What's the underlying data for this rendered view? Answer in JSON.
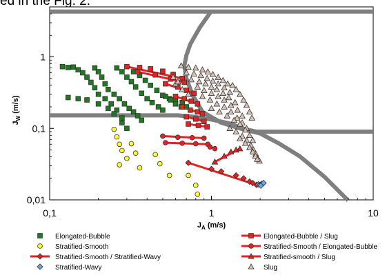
{
  "caption": "ed in the Fig. 2.",
  "chart_data": {
    "type": "scatter",
    "x_scale": "log",
    "y_scale": "log",
    "xlim": [
      0.1,
      10
    ],
    "ylim": [
      0.01,
      5
    ],
    "xticks": [
      {
        "value": 0.1,
        "label": "0,1"
      },
      {
        "value": 1,
        "label": "1"
      },
      {
        "value": 10,
        "label": "10"
      }
    ],
    "yticks": [
      {
        "value": 0.01,
        "label": "0,01"
      },
      {
        "value": 0.1,
        "label": "0,1"
      },
      {
        "value": 1,
        "label": "1"
      }
    ],
    "xlabel": {
      "main": "J",
      "sub": "A",
      "unit": " (m/s)"
    },
    "ylabel": {
      "main": "J",
      "sub": "W",
      "unit": " (m/s)"
    },
    "grid": false,
    "legend_position": "bottom",
    "colors": {
      "transition_line": "#7f7f7f",
      "green": "#1f7a1f",
      "yellow": "#ffff33",
      "red": "#e32222",
      "blue": "#6fa0dc",
      "tan": "#d9c2b4"
    },
    "transition_lines": [
      {
        "name": "",
        "points": [
          [
            0.1,
            4.3
          ],
          [
            10,
            4.3
          ]
        ]
      },
      {
        "name": "",
        "points": [
          [
            0.1,
            0.152
          ],
          [
            0.62,
            0.152
          ],
          [
            0.78,
            0.145
          ],
          [
            1.0,
            0.133
          ],
          [
            1.3,
            0.117
          ],
          [
            1.6,
            0.098
          ],
          [
            1.9,
            0.09
          ],
          [
            10,
            0.09
          ]
        ]
      },
      {
        "name": "",
        "points": [
          [
            1.0,
            4.4
          ],
          [
            0.85,
            2.6
          ],
          [
            0.74,
            1.5
          ],
          [
            0.7,
            1.05
          ],
          [
            0.68,
            0.75
          ],
          [
            0.7,
            0.5
          ],
          [
            0.76,
            0.3
          ],
          [
            0.88,
            0.17
          ],
          [
            1.15,
            0.12
          ],
          [
            1.5,
            0.1
          ],
          [
            2.0,
            0.085
          ],
          [
            2.6,
            0.062
          ],
          [
            3.5,
            0.041
          ],
          [
            5.0,
            0.021
          ],
          [
            7.0,
            0.0098
          ]
        ]
      }
    ],
    "series": [
      {
        "name": "Elongated-Bubble",
        "marker": "square",
        "color": "#1f7a1f",
        "points": [
          [
            0.12,
            0.73
          ],
          [
            0.13,
            0.71
          ],
          [
            0.14,
            0.72
          ],
          [
            0.15,
            0.66
          ],
          [
            0.16,
            0.6
          ],
          [
            0.17,
            0.52
          ],
          [
            0.18,
            0.44
          ],
          [
            0.19,
            0.37
          ],
          [
            0.2,
            0.3
          ],
          [
            0.22,
            0.26
          ],
          [
            0.24,
            0.22
          ],
          [
            0.26,
            0.18
          ],
          [
            0.28,
            0.14
          ],
          [
            0.13,
            0.27
          ],
          [
            0.15,
            0.26
          ],
          [
            0.17,
            0.25
          ],
          [
            0.2,
            0.22
          ],
          [
            0.23,
            0.19
          ],
          [
            0.25,
            0.16
          ],
          [
            0.28,
            0.12
          ],
          [
            0.3,
            0.1
          ],
          [
            0.19,
            0.7
          ],
          [
            0.2,
            0.62
          ],
          [
            0.21,
            0.52
          ],
          [
            0.22,
            0.42
          ],
          [
            0.23,
            0.35
          ],
          [
            0.25,
            0.3
          ],
          [
            0.27,
            0.26
          ],
          [
            0.29,
            0.22
          ],
          [
            0.31,
            0.19
          ],
          [
            0.33,
            0.17
          ],
          [
            0.35,
            0.15
          ],
          [
            0.37,
            0.13
          ],
          [
            0.26,
            0.7
          ],
          [
            0.28,
            0.62
          ],
          [
            0.3,
            0.52
          ],
          [
            0.32,
            0.45
          ],
          [
            0.34,
            0.38
          ],
          [
            0.37,
            0.31
          ],
          [
            0.4,
            0.26
          ],
          [
            0.43,
            0.23
          ],
          [
            0.47,
            0.2
          ],
          [
            0.5,
            0.18
          ],
          [
            0.33,
            0.62
          ],
          [
            0.36,
            0.55
          ],
          [
            0.39,
            0.47
          ],
          [
            0.42,
            0.4
          ],
          [
            0.46,
            0.34
          ],
          [
            0.5,
            0.29
          ],
          [
            0.55,
            0.26
          ],
          [
            0.6,
            0.24
          ],
          [
            0.66,
            0.23
          ],
          [
            0.52,
            0.28
          ],
          [
            0.56,
            0.25
          ],
          [
            0.6,
            0.22
          ],
          [
            0.65,
            0.2
          ],
          [
            0.7,
            0.2
          ]
        ]
      },
      {
        "name": "Stratified-Smooth",
        "marker": "circle",
        "color": "#ffff33",
        "points": [
          [
            0.25,
            0.097
          ],
          [
            0.26,
            0.076
          ],
          [
            0.27,
            0.06
          ],
          [
            0.28,
            0.049
          ],
          [
            0.27,
            0.031
          ],
          [
            0.3,
            0.038
          ],
          [
            0.32,
            0.061
          ],
          [
            0.34,
            0.045
          ],
          [
            0.36,
            0.028
          ],
          [
            0.45,
            0.043
          ],
          [
            0.48,
            0.032
          ],
          [
            0.55,
            0.022
          ],
          [
            0.72,
            0.022
          ],
          [
            0.8,
            0.016
          ],
          [
            0.82,
            0.012
          ]
        ]
      },
      {
        "name": "Stratified-Smooth / Stratified-Wavy",
        "marker": "diamond",
        "color": "#e32222",
        "points": [
          [
            0.72,
            0.033
          ],
          [
            1.0,
            0.027
          ],
          [
            1.15,
            0.025
          ],
          [
            1.42,
            0.022
          ],
          [
            1.58,
            0.02
          ],
          [
            1.72,
            0.018
          ],
          [
            1.8,
            0.0172
          ],
          [
            1.9,
            0.0162
          ]
        ]
      },
      {
        "name": "Stratified-Wavy",
        "marker": "diamond",
        "color": "#6fa0dc",
        "points": [
          [
            1.95,
            0.0165
          ],
          [
            2.0,
            0.0163
          ],
          [
            2.05,
            0.0168
          ],
          [
            2.1,
            0.0172
          ],
          [
            2.02,
            0.0158
          ]
        ]
      },
      {
        "name": "Elongated-Bubble / Slug",
        "marker": "square",
        "color": "#e32222",
        "points": [
          [
            0.3,
            0.73
          ],
          [
            0.36,
            0.71
          ],
          [
            0.42,
            0.68
          ],
          [
            0.5,
            0.63
          ],
          [
            0.58,
            0.57
          ],
          [
            0.66,
            0.5
          ],
          [
            0.35,
            0.62
          ],
          [
            0.45,
            0.56
          ],
          [
            0.56,
            0.49
          ],
          [
            0.68,
            0.44
          ],
          [
            0.52,
            0.42
          ],
          [
            0.62,
            0.38
          ],
          [
            0.7,
            0.34
          ],
          [
            0.78,
            0.31
          ],
          [
            0.6,
            0.28
          ],
          [
            0.68,
            0.26
          ],
          [
            0.75,
            0.24
          ],
          [
            0.82,
            0.22
          ],
          [
            0.66,
            0.2
          ],
          [
            0.74,
            0.18
          ],
          [
            0.82,
            0.17
          ],
          [
            0.88,
            0.16
          ],
          [
            0.7,
            0.145
          ],
          [
            0.8,
            0.135
          ],
          [
            0.9,
            0.125
          ],
          [
            0.72,
            0.115
          ],
          [
            0.83,
            0.11
          ],
          [
            0.94,
            0.105
          ]
        ]
      },
      {
        "name": "Stratified-Smooth / Elongated-Bubble",
        "marker": "circle",
        "color": "#e32222",
        "points": [
          [
            0.5,
            0.078
          ],
          [
            0.62,
            0.075
          ],
          [
            0.76,
            0.074
          ],
          [
            0.9,
            0.073
          ],
          [
            0.52,
            0.063
          ],
          [
            0.66,
            0.062
          ],
          [
            0.8,
            0.061
          ],
          [
            0.95,
            0.06
          ],
          [
            0.98,
            0.055
          ],
          [
            1.05,
            0.052
          ]
        ]
      },
      {
        "name": "Stratified-smooth / Slug",
        "marker": "triangle",
        "color": "#e32222",
        "points": [
          [
            1.05,
            0.034
          ],
          [
            1.2,
            0.041
          ],
          [
            1.32,
            0.047
          ],
          [
            1.42,
            0.05
          ],
          [
            1.5,
            0.052
          ]
        ]
      },
      {
        "name": "Slug",
        "marker": "triangle",
        "color": "#d9c2b4",
        "points": [
          [
            0.65,
            0.75
          ],
          [
            0.72,
            0.72
          ],
          [
            0.8,
            0.7
          ],
          [
            0.88,
            0.66
          ],
          [
            0.95,
            0.62
          ],
          [
            1.02,
            0.57
          ],
          [
            1.1,
            0.52
          ],
          [
            1.18,
            0.47
          ],
          [
            1.26,
            0.42
          ],
          [
            0.7,
            0.6
          ],
          [
            0.78,
            0.58
          ],
          [
            0.86,
            0.55
          ],
          [
            0.94,
            0.5
          ],
          [
            1.02,
            0.46
          ],
          [
            1.1,
            0.42
          ],
          [
            1.2,
            0.37
          ],
          [
            1.3,
            0.32
          ],
          [
            0.75,
            0.48
          ],
          [
            0.84,
            0.45
          ],
          [
            0.92,
            0.42
          ],
          [
            1.0,
            0.38
          ],
          [
            1.08,
            0.35
          ],
          [
            1.18,
            0.31
          ],
          [
            1.28,
            0.27
          ],
          [
            1.4,
            0.23
          ],
          [
            0.82,
            0.38
          ],
          [
            0.9,
            0.34
          ],
          [
            1.0,
            0.31
          ],
          [
            1.1,
            0.28
          ],
          [
            1.2,
            0.25
          ],
          [
            1.32,
            0.21
          ],
          [
            1.45,
            0.18
          ],
          [
            1.55,
            0.15
          ],
          [
            0.88,
            0.28
          ],
          [
            0.98,
            0.25
          ],
          [
            1.08,
            0.22
          ],
          [
            1.2,
            0.2
          ],
          [
            1.32,
            0.17
          ],
          [
            1.44,
            0.14
          ],
          [
            1.55,
            0.12
          ],
          [
            1.65,
            0.1
          ],
          [
            1.0,
            0.19
          ],
          [
            1.12,
            0.17
          ],
          [
            1.25,
            0.15
          ],
          [
            1.38,
            0.13
          ],
          [
            1.5,
            0.115
          ],
          [
            1.62,
            0.095
          ],
          [
            1.72,
            0.08
          ],
          [
            1.8,
            0.068
          ],
          [
            1.3,
            0.1
          ],
          [
            1.42,
            0.09
          ],
          [
            1.55,
            0.078
          ],
          [
            1.65,
            0.068
          ],
          [
            1.75,
            0.058
          ],
          [
            1.82,
            0.05
          ],
          [
            1.88,
            0.044
          ],
          [
            1.93,
            0.038
          ],
          [
            1.98,
            0.035
          ],
          [
            1.5,
            0.072
          ],
          [
            1.62,
            0.062
          ],
          [
            1.72,
            0.054
          ],
          [
            1.8,
            0.047
          ],
          [
            1.87,
            0.041
          ],
          [
            1.92,
            0.037
          ],
          [
            0.6,
            0.42
          ],
          [
            0.66,
            0.35
          ],
          [
            0.72,
            0.3
          ],
          [
            0.58,
            0.52
          ],
          [
            0.62,
            0.45
          ],
          [
            1.35,
            0.4
          ],
          [
            1.42,
            0.35
          ],
          [
            1.5,
            0.3
          ],
          [
            1.58,
            0.25
          ],
          [
            1.65,
            0.21
          ],
          [
            1.72,
            0.17
          ],
          [
            1.78,
            0.14
          ]
        ]
      }
    ],
    "red_connectors": [
      [
        [
          0.3,
          0.73
        ],
        [
          0.66,
          0.5
        ]
      ],
      [
        [
          0.35,
          0.62
        ],
        [
          0.68,
          0.44
        ]
      ],
      [
        [
          0.52,
          0.42
        ],
        [
          0.78,
          0.31
        ]
      ],
      [
        [
          0.6,
          0.28
        ],
        [
          0.82,
          0.22
        ]
      ],
      [
        [
          0.66,
          0.2
        ],
        [
          0.88,
          0.16
        ]
      ],
      [
        [
          0.7,
          0.145
        ],
        [
          0.9,
          0.125
        ]
      ],
      [
        [
          0.72,
          0.115
        ],
        [
          0.94,
          0.105
        ]
      ],
      [
        [
          0.5,
          0.078
        ],
        [
          0.9,
          0.073
        ]
      ],
      [
        [
          0.52,
          0.063
        ],
        [
          0.95,
          0.06
        ]
      ],
      [
        [
          1.05,
          0.034
        ],
        [
          1.5,
          0.052
        ]
      ],
      [
        [
          0.72,
          0.033
        ],
        [
          1.9,
          0.0162
        ]
      ]
    ],
    "legend": [
      {
        "label": "Elongated-Bubble",
        "marker": "square",
        "color": "#1f7a1f",
        "line": false
      },
      {
        "label": "Elongated-Bubble / Slug",
        "marker": "square",
        "color": "#e32222",
        "line": true
      },
      {
        "label": "Stratified-Smooth",
        "marker": "circle",
        "color": "#ffff33",
        "line": false
      },
      {
        "label": "Stratified-Smooth / Elongated-Bubble",
        "marker": "circle",
        "color": "#e32222",
        "line": true
      },
      {
        "label": "Stratified-Smooth / Stratified-Wavy",
        "marker": "diamond",
        "color": "#e32222",
        "line": true
      },
      {
        "label": "Stratified-smooth / Slug",
        "marker": "triangle",
        "color": "#e32222",
        "line": true
      },
      {
        "label": "Stratified-Wavy",
        "marker": "diamond",
        "color": "#6fa0dc",
        "line": false
      },
      {
        "label": "Slug",
        "marker": "triangle",
        "color": "#d9c2b4",
        "line": false
      }
    ]
  }
}
